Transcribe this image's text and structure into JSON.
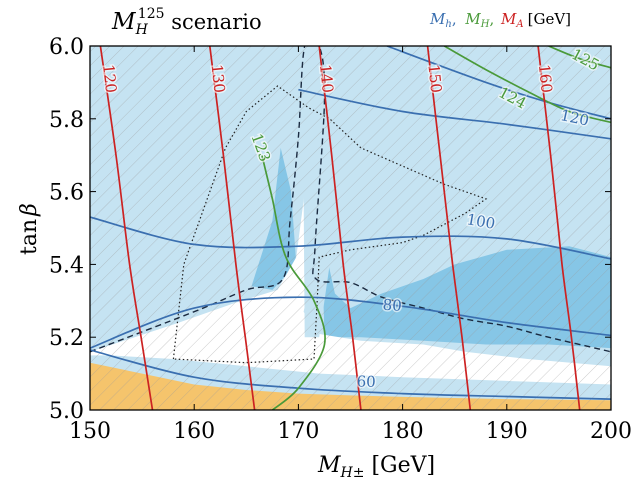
{
  "chart_data": {
    "type": "contour",
    "title": {
      "base": "M",
      "sub": "H",
      "sup": "125",
      "rest": " scenario"
    },
    "xlabel": {
      "base": "M",
      "sub": "H±",
      "rest": " [GeV]"
    },
    "ylabel": {
      "base": "tan",
      "greek": "β"
    },
    "xlim": [
      150,
      200
    ],
    "ylim": [
      5.0,
      6.0
    ],
    "xticks": [
      "150",
      "160",
      "170",
      "180",
      "190",
      "200"
    ],
    "yticks": [
      "5.0",
      "5.2",
      "5.4",
      "5.6",
      "5.8",
      "6.0"
    ],
    "legend": {
      "position": "top-right",
      "items": [
        {
          "base": "M",
          "sub": "h",
          "sep": ",",
          "color": "#3a6fb0"
        },
        {
          "base": "M",
          "sub": "H",
          "sep": ",",
          "color": "#4a9a3a"
        },
        {
          "base": "M",
          "sub": "A",
          "sep": "",
          "color": "#cc2222"
        }
      ],
      "unit": "[GeV]"
    },
    "colors": {
      "excluded_light": "#c5e3f2",
      "excluded_mid": "#86c6e6",
      "excluded_dark": "#66b2dc",
      "orange_region": "#f5c46c",
      "Mh": "#3a6fb0",
      "MH": "#4a9a3a",
      "MA": "#cc2222",
      "dashed": "#1a2a40",
      "dotted": "#222222"
    },
    "contours": {
      "Mh": [
        {
          "label": "60",
          "points": [
            [
              150,
              5.165
            ],
            [
              160,
              5.09
            ],
            [
              170,
              5.06
            ],
            [
              180,
              5.045
            ],
            [
              190,
              5.037
            ],
            [
              200,
              5.03
            ]
          ],
          "label_at": [
            176.5,
            5.075
          ]
        },
        {
          "label": "80",
          "points": [
            [
              150,
              5.17
            ],
            [
              160,
              5.28
            ],
            [
              170,
              5.31
            ],
            [
              180,
              5.285
            ],
            [
              190,
              5.24
            ],
            [
              200,
              5.205
            ]
          ],
          "label_at": [
            179.0,
            5.285
          ]
        },
        {
          "label": "100",
          "points": [
            [
              150,
              5.53
            ],
            [
              160,
              5.455
            ],
            [
              170,
              5.45
            ],
            [
              180,
              5.475
            ],
            [
              190,
              5.47
            ],
            [
              200,
              5.415
            ]
          ],
          "label_at": [
            187.5,
            5.515
          ]
        },
        {
          "label": "120",
          "points": [
            [
              170,
              5.88
            ],
            [
              180,
              5.82
            ],
            [
              190,
              5.785
            ],
            [
              200,
              5.745
            ]
          ],
          "label_at": [
            196.5,
            5.8
          ]
        },
        {
          "label": "",
          "points": [
            [
              178.5,
              6.0
            ],
            [
              188,
              5.9
            ],
            [
              194,
              5.845
            ],
            [
              200,
              5.8
            ]
          ],
          "label_at": null
        }
      ],
      "MH": [
        {
          "label": "123",
          "points": [
            [
              167.5,
              5.0
            ],
            [
              170,
              5.06
            ],
            [
              172.5,
              5.18
            ],
            [
              171.5,
              5.3
            ],
            [
              168.8,
              5.42
            ],
            [
              167.5,
              5.58
            ],
            [
              166.5,
              5.7
            ]
          ],
          "label_at": [
            166.3,
            5.72
          ]
        },
        {
          "label": "124",
          "points": [
            [
              184,
              6.0
            ],
            [
              188,
              5.935
            ],
            [
              192,
              5.875
            ],
            [
              196,
              5.82
            ],
            [
              200,
              5.79
            ]
          ],
          "label_at": [
            190.5,
            5.855
          ]
        },
        {
          "label": "125",
          "points": [
            [
              194,
              6.0
            ],
            [
              197,
              5.965
            ],
            [
              200,
              5.94
            ]
          ],
          "label_at": [
            197.5,
            5.96
          ]
        }
      ],
      "MA": [
        {
          "label": "120",
          "points": [
            [
              151.0,
              6.0
            ],
            [
              152.5,
              5.7
            ],
            [
              153.8,
              5.4
            ],
            [
              154.9,
              5.2
            ],
            [
              156.0,
              5.0
            ]
          ],
          "label_at": [
            151.8,
            5.91
          ]
        },
        {
          "label": "130",
          "points": [
            [
              161.5,
              6.0
            ],
            [
              162.8,
              5.7
            ],
            [
              164.0,
              5.4
            ],
            [
              164.9,
              5.2
            ],
            [
              165.8,
              5.0
            ]
          ],
          "label_at": [
            162.2,
            5.91
          ]
        },
        {
          "label": "140",
          "points": [
            [
              172.0,
              6.0
            ],
            [
              173.2,
              5.7
            ],
            [
              174.3,
              5.4
            ],
            [
              175.2,
              5.2
            ],
            [
              176.0,
              5.0
            ]
          ],
          "label_at": [
            172.6,
            5.91
          ]
        },
        {
          "label": "150",
          "points": [
            [
              182.4,
              6.0
            ],
            [
              183.6,
              5.7
            ],
            [
              184.8,
              5.4
            ],
            [
              185.7,
              5.2
            ],
            [
              186.5,
              5.0
            ]
          ],
          "label_at": [
            183.0,
            5.91
          ]
        },
        {
          "label": "160",
          "points": [
            [
              193.0,
              6.0
            ],
            [
              194.2,
              5.7
            ],
            [
              195.3,
              5.4
            ],
            [
              196.2,
              5.2
            ],
            [
              197.0,
              5.0
            ]
          ],
          "label_at": [
            193.6,
            5.91
          ]
        }
      ]
    },
    "regions": {
      "orange": [
        [
          150,
          5.0
        ],
        [
          150,
          5.13
        ],
        [
          155,
          5.1
        ],
        [
          160,
          5.07
        ],
        [
          165,
          5.055
        ],
        [
          170,
          5.045
        ],
        [
          175,
          5.04
        ],
        [
          180,
          5.036
        ],
        [
          190,
          5.03
        ],
        [
          200,
          5.027
        ],
        [
          200,
          5.0
        ]
      ],
      "light_blue": [
        [
          150,
          5.0
        ],
        [
          150,
          6.0
        ],
        [
          200,
          6.0
        ],
        [
          200,
          5.0
        ]
      ],
      "white_allowed": [
        [
          150,
          5.16
        ],
        [
          158,
          5.235
        ],
        [
          164,
          5.295
        ],
        [
          168,
          5.33
        ],
        [
          169.8,
          5.42
        ],
        [
          170.7,
          5.62
        ],
        [
          171.5,
          5.68
        ],
        [
          171.8,
          5.55
        ],
        [
          171.2,
          5.36
        ],
        [
          170.5,
          5.27
        ],
        [
          171.8,
          5.21
        ],
        [
          176,
          5.19
        ],
        [
          182,
          5.18
        ],
        [
          186,
          5.16
        ],
        [
          192,
          5.14
        ],
        [
          200,
          5.12
        ],
        [
          200,
          5.07
        ],
        [
          190,
          5.08
        ],
        [
          180,
          5.09
        ],
        [
          172,
          5.1
        ],
        [
          165,
          5.12
        ],
        [
          158,
          5.14
        ],
        [
          152,
          5.15
        ],
        [
          150,
          5.15
        ]
      ],
      "mid_blue_wedge": [
        [
          170.4,
          6.0
        ],
        [
          173.5,
          6.0
        ],
        [
          175.5,
          5.86
        ],
        [
          180,
          5.75
        ],
        [
          186,
          5.68
        ],
        [
          193,
          5.62
        ],
        [
          200,
          5.58
        ],
        [
          200,
          5.52
        ],
        [
          192,
          5.55
        ],
        [
          186,
          5.58
        ],
        [
          180,
          5.62
        ],
        [
          175.5,
          5.65
        ],
        [
          173.0,
          5.4
        ],
        [
          172.0,
          5.2
        ],
        [
          170.6,
          5.2
        ],
        [
          170.5,
          5.6
        ]
      ],
      "dark_blue_region": [
        [
          169.5,
          6.0
        ],
        [
          171.5,
          6.0
        ],
        [
          172.2,
          5.5
        ],
        [
          172.5,
          5.2
        ],
        [
          176,
          5.2
        ],
        [
          182,
          5.19
        ],
        [
          188,
          5.18
        ],
        [
          194,
          5.18
        ],
        [
          200,
          5.17
        ],
        [
          200,
          5.42
        ],
        [
          196,
          5.45
        ],
        [
          190,
          5.44
        ],
        [
          185,
          5.4
        ],
        [
          182,
          5.36
        ],
        [
          178,
          5.32
        ],
        [
          175,
          5.28
        ],
        [
          173.5,
          5.32
        ],
        [
          172.5,
          5.45
        ],
        [
          171.5,
          5.75
        ],
        [
          171.0,
          6.0
        ]
      ],
      "left_dark_band": [
        [
          165.5,
          5.34
        ],
        [
          167.5,
          5.52
        ],
        [
          168.3,
          5.72
        ],
        [
          169.3,
          5.6
        ],
        [
          169.8,
          5.4
        ],
        [
          167.5,
          5.33
        ]
      ],
      "dashed_boundary": [
        [
          150,
          5.16
        ],
        [
          160,
          5.27
        ],
        [
          165,
          5.33
        ],
        [
          168.5,
          5.36
        ],
        [
          169.2,
          5.52
        ],
        [
          170,
          5.75
        ],
        [
          170.6,
          6.0
        ],
        [
          172.0,
          6.0
        ],
        [
          172.5,
          5.85
        ],
        [
          171.6,
          5.45
        ],
        [
          171.7,
          5.36
        ],
        [
          175,
          5.35
        ],
        [
          178,
          5.31
        ],
        [
          182,
          5.28
        ],
        [
          186,
          5.25
        ],
        [
          190,
          5.23
        ],
        [
          194,
          5.2
        ],
        [
          200,
          5.16
        ]
      ],
      "dotted_boundary": [
        [
          158,
          5.14
        ],
        [
          159,
          5.4
        ],
        [
          161,
          5.56
        ],
        [
          163,
          5.72
        ],
        [
          165,
          5.82
        ],
        [
          168,
          5.89
        ],
        [
          171,
          5.83
        ],
        [
          173,
          5.8
        ],
        [
          176,
          5.72
        ],
        [
          180,
          5.67
        ],
        [
          184,
          5.62
        ],
        [
          188,
          5.58
        ],
        [
          186,
          5.54
        ],
        [
          182,
          5.48
        ],
        [
          180,
          5.46
        ],
        [
          175,
          5.44
        ],
        [
          172,
          5.42
        ],
        [
          171.8,
          5.3
        ],
        [
          171.5,
          5.14
        ],
        [
          165,
          5.13
        ],
        [
          158,
          5.14
        ]
      ]
    }
  }
}
